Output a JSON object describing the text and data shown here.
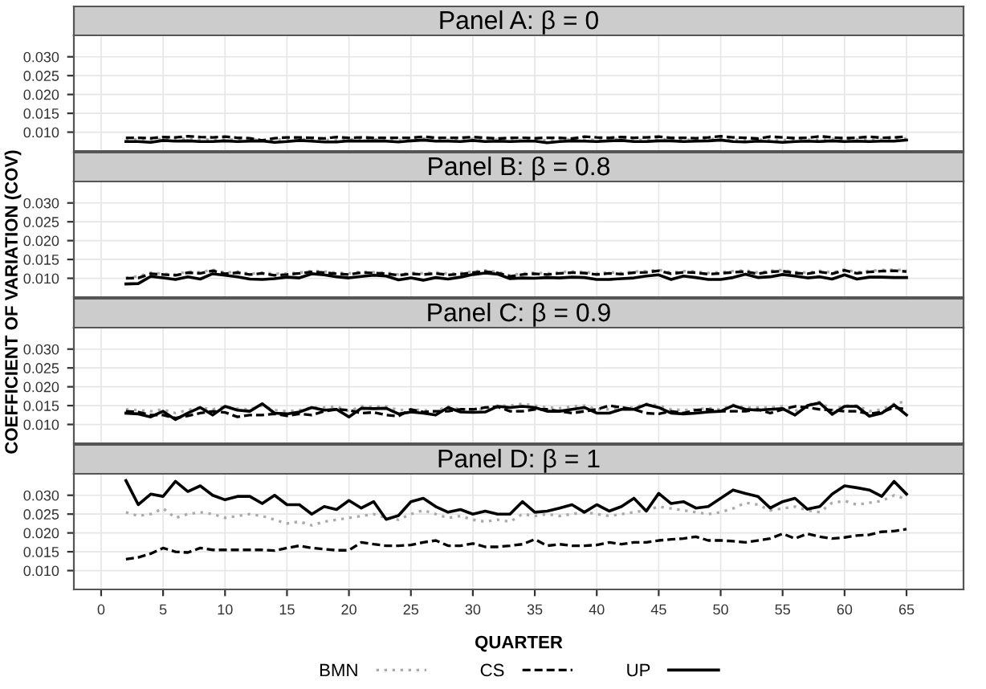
{
  "chart_data": [
    {
      "type": "line",
      "title": "Panel A: β = 0",
      "ylabel": "COEFFICIENT OF VARIATION (COV)",
      "xlim": [
        -2.2,
        69.6
      ],
      "xticks": [
        0,
        5,
        10,
        15,
        20,
        25,
        30,
        35,
        40,
        45,
        50,
        55,
        60,
        65
      ],
      "ylim": [
        0.005,
        0.0357
      ],
      "yticks": [
        {
          "value": 0.01,
          "label": "0.010"
        },
        {
          "value": 0.015,
          "label": "0.015"
        },
        {
          "value": 0.02,
          "label": "0.020"
        },
        {
          "value": 0.025,
          "label": "0.025"
        },
        {
          "value": 0.03,
          "label": "0.030"
        }
      ],
      "grid": true,
      "tick_labels": "y",
      "x": [
        2,
        3,
        4,
        5,
        6,
        7,
        8,
        9,
        10,
        11,
        12,
        13,
        14,
        15,
        16,
        17,
        18,
        19,
        20,
        21,
        22,
        23,
        24,
        25,
        26,
        27,
        28,
        29,
        30,
        31,
        32,
        33,
        34,
        35,
        36,
        37,
        38,
        39,
        40,
        41,
        42,
        43,
        44,
        45,
        46,
        47,
        48,
        49,
        50,
        51,
        52,
        53,
        54,
        55,
        56,
        57,
        58,
        59,
        60,
        61,
        62,
        63,
        64,
        65
      ],
      "series": [
        {
          "color": "#aaaaaa",
          "line_style": "dotted",
          "values": [
            0.008,
            0.0081,
            0.0079,
            0.0082,
            0.0081,
            0.0083,
            0.008,
            0.0081,
            0.0082,
            0.008,
            0.008,
            0.0079,
            0.008,
            0.0081,
            0.0082,
            0.008,
            0.0079,
            0.008,
            0.0081,
            0.008,
            0.0081,
            0.008,
            0.0079,
            0.0081,
            0.0083,
            0.008,
            0.008,
            0.008,
            0.0082,
            0.008,
            0.008,
            0.0079,
            0.008,
            0.0081,
            0.0078,
            0.008,
            0.0081,
            0.008,
            0.008,
            0.0081,
            0.0082,
            0.008,
            0.0079,
            0.0081,
            0.0081,
            0.008,
            0.008,
            0.0081,
            0.0083,
            0.008,
            0.0079,
            0.008,
            0.008,
            0.0079,
            0.008,
            0.0081,
            0.008,
            0.0082,
            0.008,
            0.0081,
            0.008,
            0.0081,
            0.0081,
            0.0083
          ]
        },
        {
          "color": "#000000",
          "line_style": "dashed",
          "values": [
            0.0085,
            0.0085,
            0.0084,
            0.0087,
            0.0086,
            0.0089,
            0.0087,
            0.0086,
            0.0088,
            0.0085,
            0.0084,
            0.0078,
            0.0084,
            0.0086,
            0.0086,
            0.0085,
            0.0083,
            0.0087,
            0.0085,
            0.0086,
            0.0085,
            0.0085,
            0.0085,
            0.0085,
            0.0088,
            0.0085,
            0.0085,
            0.0085,
            0.0087,
            0.0085,
            0.0083,
            0.0085,
            0.0085,
            0.0084,
            0.0085,
            0.0085,
            0.0083,
            0.0088,
            0.0086,
            0.0085,
            0.0087,
            0.0085,
            0.0086,
            0.0088,
            0.0085,
            0.0085,
            0.0084,
            0.0086,
            0.0089,
            0.0086,
            0.0085,
            0.0083,
            0.0088,
            0.0086,
            0.0084,
            0.0085,
            0.0089,
            0.0086,
            0.0084,
            0.0085,
            0.0088,
            0.0085,
            0.0086,
            0.0088
          ]
        },
        {
          "color": "#000000",
          "line_style": "solid",
          "values": [
            0.0075,
            0.0075,
            0.0073,
            0.0078,
            0.0076,
            0.0077,
            0.0075,
            0.0075,
            0.0077,
            0.0075,
            0.0076,
            0.0077,
            0.0073,
            0.0075,
            0.0078,
            0.0076,
            0.0074,
            0.0074,
            0.0077,
            0.0076,
            0.0077,
            0.0076,
            0.0074,
            0.0077,
            0.0079,
            0.0076,
            0.0076,
            0.0075,
            0.0078,
            0.0075,
            0.0076,
            0.0075,
            0.0076,
            0.0076,
            0.0072,
            0.0075,
            0.0077,
            0.0076,
            0.0075,
            0.0077,
            0.0078,
            0.0075,
            0.0075,
            0.0077,
            0.0077,
            0.0075,
            0.0076,
            0.0077,
            0.0079,
            0.0075,
            0.0074,
            0.0076,
            0.0075,
            0.0073,
            0.0075,
            0.0076,
            0.0075,
            0.0077,
            0.0075,
            0.0076,
            0.0075,
            0.0076,
            0.0076,
            0.0079
          ]
        }
      ]
    },
    {
      "type": "line",
      "title": "Panel B: β = 0.8",
      "xlim": [
        -2.2,
        69.6
      ],
      "xticks": [
        0,
        5,
        10,
        15,
        20,
        25,
        30,
        35,
        40,
        45,
        50,
        55,
        60,
        65
      ],
      "ylim": [
        0.005,
        0.0357
      ],
      "yticks": [
        {
          "value": 0.01,
          "label": "0.010"
        },
        {
          "value": 0.015,
          "label": "0.015"
        },
        {
          "value": 0.02,
          "label": "0.020"
        },
        {
          "value": 0.025,
          "label": "0.025"
        },
        {
          "value": 0.03,
          "label": "0.030"
        }
      ],
      "grid": true,
      "tick_labels": "y",
      "x": [
        2,
        3,
        4,
        5,
        6,
        7,
        8,
        9,
        10,
        11,
        12,
        13,
        14,
        15,
        16,
        17,
        18,
        19,
        20,
        21,
        22,
        23,
        24,
        25,
        26,
        27,
        28,
        29,
        30,
        31,
        32,
        33,
        34,
        35,
        36,
        37,
        38,
        39,
        40,
        41,
        42,
        43,
        44,
        45,
        46,
        47,
        48,
        49,
        50,
        51,
        52,
        53,
        54,
        55,
        56,
        57,
        58,
        59,
        60,
        61,
        62,
        63,
        64,
        65
      ],
      "series": [
        {
          "color": "#aaaaaa",
          "line_style": "dotted",
          "values": [
            0.0102,
            0.0105,
            0.0115,
            0.0112,
            0.011,
            0.0118,
            0.0116,
            0.0123,
            0.0115,
            0.0118,
            0.0112,
            0.0115,
            0.0112,
            0.0113,
            0.0115,
            0.012,
            0.0118,
            0.0115,
            0.0113,
            0.0118,
            0.0116,
            0.0115,
            0.011,
            0.0115,
            0.0113,
            0.0116,
            0.0112,
            0.0114,
            0.0118,
            0.0121,
            0.0117,
            0.0108,
            0.0113,
            0.0115,
            0.0113,
            0.0116,
            0.0118,
            0.0117,
            0.0113,
            0.0116,
            0.0114,
            0.0118,
            0.0119,
            0.0123,
            0.0115,
            0.0119,
            0.0118,
            0.0114,
            0.0116,
            0.0119,
            0.0121,
            0.0115,
            0.012,
            0.0122,
            0.0117,
            0.0115,
            0.012,
            0.0115,
            0.0124,
            0.0116,
            0.012,
            0.0122,
            0.0123,
            0.0121
          ]
        },
        {
          "color": "#000000",
          "line_style": "dashed",
          "values": [
            0.01,
            0.0101,
            0.0112,
            0.011,
            0.0108,
            0.0115,
            0.0113,
            0.012,
            0.0112,
            0.0115,
            0.011,
            0.0113,
            0.0108,
            0.011,
            0.0113,
            0.0117,
            0.0115,
            0.0112,
            0.011,
            0.0115,
            0.0114,
            0.0112,
            0.0108,
            0.0112,
            0.011,
            0.0113,
            0.0109,
            0.0111,
            0.0115,
            0.0118,
            0.0114,
            0.0105,
            0.011,
            0.0112,
            0.011,
            0.0113,
            0.0115,
            0.0114,
            0.011,
            0.0113,
            0.0111,
            0.0115,
            0.0116,
            0.012,
            0.0112,
            0.0116,
            0.0115,
            0.0111,
            0.0113,
            0.0116,
            0.0118,
            0.0112,
            0.0117,
            0.0119,
            0.0114,
            0.0112,
            0.0117,
            0.0112,
            0.0121,
            0.0113,
            0.0117,
            0.0119,
            0.012,
            0.0118
          ]
        },
        {
          "color": "#000000",
          "line_style": "solid",
          "values": [
            0.0085,
            0.0086,
            0.0105,
            0.0101,
            0.0097,
            0.0104,
            0.0098,
            0.0112,
            0.0108,
            0.0104,
            0.0098,
            0.0097,
            0.0099,
            0.0103,
            0.0101,
            0.0112,
            0.0109,
            0.0104,
            0.0101,
            0.0105,
            0.0108,
            0.0106,
            0.0096,
            0.0101,
            0.0095,
            0.0102,
            0.0098,
            0.0103,
            0.011,
            0.0114,
            0.0111,
            0.0099,
            0.0101,
            0.01,
            0.0102,
            0.0101,
            0.0103,
            0.0102,
            0.0097,
            0.0097,
            0.0099,
            0.0101,
            0.0106,
            0.0109,
            0.0097,
            0.0106,
            0.0102,
            0.0097,
            0.0097,
            0.0102,
            0.0111,
            0.0102,
            0.0104,
            0.011,
            0.0106,
            0.0101,
            0.0104,
            0.0098,
            0.0109,
            0.0098,
            0.0103,
            0.0103,
            0.0102,
            0.0102
          ]
        }
      ]
    },
    {
      "type": "line",
      "title": "Panel C: β = 0.9",
      "xlim": [
        -2.2,
        69.6
      ],
      "xticks": [
        0,
        5,
        10,
        15,
        20,
        25,
        30,
        35,
        40,
        45,
        50,
        55,
        60,
        65
      ],
      "ylim": [
        0.005,
        0.0357
      ],
      "yticks": [
        {
          "value": 0.01,
          "label": "0.010"
        },
        {
          "value": 0.015,
          "label": "0.015"
        },
        {
          "value": 0.02,
          "label": "0.020"
        },
        {
          "value": 0.025,
          "label": "0.025"
        },
        {
          "value": 0.03,
          "label": "0.030"
        }
      ],
      "grid": true,
      "tick_labels": "y",
      "x": [
        2,
        3,
        4,
        5,
        6,
        7,
        8,
        9,
        10,
        11,
        12,
        13,
        14,
        15,
        16,
        17,
        18,
        19,
        20,
        21,
        22,
        23,
        24,
        25,
        26,
        27,
        28,
        29,
        30,
        31,
        32,
        33,
        34,
        35,
        36,
        37,
        38,
        39,
        40,
        41,
        42,
        43,
        44,
        45,
        46,
        47,
        48,
        49,
        50,
        51,
        52,
        53,
        54,
        55,
        56,
        57,
        58,
        59,
        60,
        61,
        62,
        63,
        64,
        65
      ],
      "series": [
        {
          "color": "#aaaaaa",
          "line_style": "dotted",
          "values": [
            0.014,
            0.0138,
            0.0135,
            0.014,
            0.013,
            0.0138,
            0.0145,
            0.014,
            0.0148,
            0.0142,
            0.014,
            0.015,
            0.0138,
            0.0135,
            0.0138,
            0.0145,
            0.0145,
            0.0148,
            0.0135,
            0.0148,
            0.0147,
            0.0148,
            0.0138,
            0.014,
            0.0138,
            0.0135,
            0.0148,
            0.014,
            0.014,
            0.014,
            0.015,
            0.015,
            0.0155,
            0.015,
            0.0145,
            0.0143,
            0.0148,
            0.015,
            0.014,
            0.014,
            0.0145,
            0.0145,
            0.0155,
            0.015,
            0.014,
            0.0138,
            0.014,
            0.0143,
            0.014,
            0.0152,
            0.0145,
            0.0145,
            0.0145,
            0.0148,
            0.0135,
            0.0152,
            0.016,
            0.0138,
            0.015,
            0.015,
            0.0135,
            0.014,
            0.0155,
            0.0162
          ]
        },
        {
          "color": "#000000",
          "line_style": "dashed",
          "values": [
            0.0135,
            0.0133,
            0.0125,
            0.0125,
            0.0117,
            0.0123,
            0.013,
            0.0135,
            0.0132,
            0.012,
            0.0125,
            0.0125,
            0.0128,
            0.0123,
            0.0128,
            0.0125,
            0.0135,
            0.014,
            0.0138,
            0.013,
            0.0132,
            0.0125,
            0.0122,
            0.014,
            0.0133,
            0.0135,
            0.0135,
            0.014,
            0.014,
            0.0145,
            0.0147,
            0.0135,
            0.0135,
            0.014,
            0.014,
            0.0135,
            0.013,
            0.0135,
            0.014,
            0.015,
            0.0145,
            0.014,
            0.013,
            0.0128,
            0.0135,
            0.013,
            0.0138,
            0.014,
            0.0135,
            0.0135,
            0.0135,
            0.014,
            0.013,
            0.014,
            0.0148,
            0.0145,
            0.014,
            0.0138,
            0.0135,
            0.0135,
            0.0128,
            0.0133,
            0.0145,
            0.014
          ]
        },
        {
          "color": "#000000",
          "line_style": "solid",
          "values": [
            0.013,
            0.0128,
            0.012,
            0.0135,
            0.0113,
            0.013,
            0.0145,
            0.0125,
            0.0148,
            0.0138,
            0.0135,
            0.0155,
            0.013,
            0.0128,
            0.0133,
            0.0145,
            0.0138,
            0.014,
            0.012,
            0.0143,
            0.0142,
            0.0143,
            0.0128,
            0.0133,
            0.013,
            0.0125,
            0.0145,
            0.0133,
            0.0132,
            0.0133,
            0.0148,
            0.0145,
            0.0148,
            0.0145,
            0.0135,
            0.0135,
            0.014,
            0.0145,
            0.013,
            0.013,
            0.014,
            0.014,
            0.0153,
            0.0145,
            0.013,
            0.0128,
            0.013,
            0.0133,
            0.0135,
            0.015,
            0.014,
            0.0138,
            0.014,
            0.0142,
            0.0125,
            0.015,
            0.0157,
            0.0127,
            0.0148,
            0.0148,
            0.0122,
            0.013,
            0.0152,
            0.0125
          ]
        }
      ]
    },
    {
      "type": "line",
      "title": "Panel D: β = 1",
      "xlabel": "QUARTER",
      "legend": "bottom",
      "xlim": [
        -2.2,
        69.6
      ],
      "xticks": [
        0,
        5,
        10,
        15,
        20,
        25,
        30,
        35,
        40,
        45,
        50,
        55,
        60,
        65
      ],
      "ylim": [
        0.005,
        0.0357
      ],
      "yticks": [
        {
          "value": 0.01,
          "label": "0.010"
        },
        {
          "value": 0.015,
          "label": "0.015"
        },
        {
          "value": 0.02,
          "label": "0.020"
        },
        {
          "value": 0.025,
          "label": "0.025"
        },
        {
          "value": 0.03,
          "label": "0.030"
        }
      ],
      "grid": true,
      "x": [
        2,
        3,
        4,
        5,
        6,
        7,
        8,
        9,
        10,
        11,
        12,
        13,
        14,
        15,
        16,
        17,
        18,
        19,
        20,
        21,
        22,
        23,
        24,
        25,
        26,
        27,
        28,
        29,
        30,
        31,
        32,
        33,
        34,
        35,
        36,
        37,
        38,
        39,
        40,
        41,
        42,
        43,
        44,
        45,
        46,
        47,
        48,
        49,
        50,
        51,
        52,
        53,
        54,
        55,
        56,
        57,
        58,
        59,
        60,
        61,
        62,
        63,
        64,
        65
      ],
      "series": [
        {
          "name": "BMN",
          "color": "#aaaaaa",
          "line_style": "dotted",
          "values": [
            0.0255,
            0.0245,
            0.025,
            0.0265,
            0.024,
            0.025,
            0.0255,
            0.025,
            0.024,
            0.0245,
            0.025,
            0.0245,
            0.0235,
            0.0225,
            0.023,
            0.022,
            0.023,
            0.0235,
            0.024,
            0.0245,
            0.025,
            0.024,
            0.0235,
            0.025,
            0.026,
            0.025,
            0.024,
            0.0245,
            0.0235,
            0.023,
            0.0235,
            0.023,
            0.025,
            0.0245,
            0.025,
            0.0245,
            0.025,
            0.0255,
            0.025,
            0.0245,
            0.025,
            0.0255,
            0.026,
            0.027,
            0.0265,
            0.026,
            0.0255,
            0.025,
            0.0255,
            0.0265,
            0.028,
            0.0275,
            0.026,
            0.0265,
            0.027,
            0.026,
            0.0255,
            0.028,
            0.0285,
            0.0275,
            0.028,
            0.0285,
            0.03,
            0.029
          ]
        },
        {
          "name": "CS",
          "color": "#000000",
          "line_style": "dashed",
          "values": [
            0.013,
            0.0135,
            0.0145,
            0.016,
            0.015,
            0.0148,
            0.016,
            0.0155,
            0.0155,
            0.0155,
            0.0155,
            0.0155,
            0.0153,
            0.016,
            0.0166,
            0.016,
            0.0157,
            0.0154,
            0.0154,
            0.0175,
            0.017,
            0.0166,
            0.0166,
            0.0168,
            0.0175,
            0.018,
            0.0166,
            0.0166,
            0.0172,
            0.0163,
            0.0163,
            0.0166,
            0.017,
            0.0183,
            0.0166,
            0.017,
            0.0166,
            0.0166,
            0.0168,
            0.0175,
            0.017,
            0.0175,
            0.0175,
            0.018,
            0.0183,
            0.0185,
            0.019,
            0.018,
            0.018,
            0.0178,
            0.0175,
            0.018,
            0.0185,
            0.0198,
            0.0185,
            0.0198,
            0.019,
            0.0185,
            0.0188,
            0.0193,
            0.0195,
            0.0203,
            0.0205,
            0.021
          ]
        },
        {
          "name": "UP",
          "color": "#000000",
          "line_style": "solid",
          "values": [
            0.0339,
            0.0275,
            0.0303,
            0.0297,
            0.0337,
            0.031,
            0.0325,
            0.03,
            0.0288,
            0.0297,
            0.0297,
            0.0278,
            0.03,
            0.0275,
            0.0275,
            0.025,
            0.027,
            0.0262,
            0.0286,
            0.0266,
            0.0283,
            0.0236,
            0.0246,
            0.0283,
            0.0292,
            0.027,
            0.0255,
            0.0262,
            0.025,
            0.0258,
            0.025,
            0.025,
            0.0283,
            0.0255,
            0.0258,
            0.0266,
            0.0275,
            0.0255,
            0.0275,
            0.0258,
            0.027,
            0.0292,
            0.0258,
            0.0305,
            0.0278,
            0.0283,
            0.0266,
            0.027,
            0.0292,
            0.0314,
            0.0305,
            0.0297,
            0.0266,
            0.0283,
            0.0292,
            0.0263,
            0.027,
            0.0303,
            0.0325,
            0.032,
            0.0314,
            0.0297,
            0.0337,
            0.0303
          ]
        }
      ]
    }
  ]
}
